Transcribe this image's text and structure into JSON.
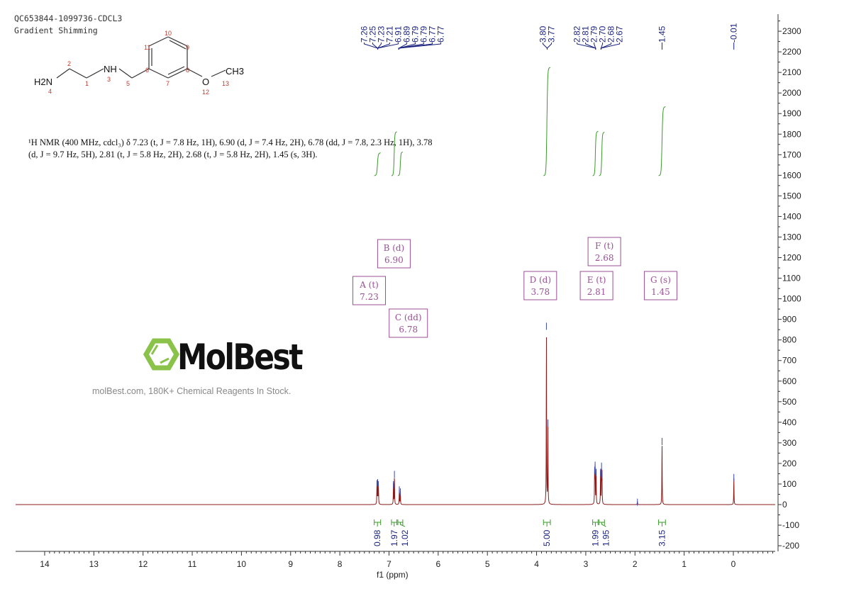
{
  "header": {
    "sample_id": "QC653844-1099736-CDCL3",
    "method": "Gradient Shimming"
  },
  "structure": {
    "atoms": [
      "H2N",
      "NH",
      "O",
      "CH3"
    ],
    "atom_numbers": [
      "1",
      "2",
      "3",
      "4",
      "5",
      "6",
      "7",
      "8",
      "9",
      "10",
      "11",
      "12",
      "13"
    ]
  },
  "nmr_description": "¹H NMR (400 MHz, cdcl₃) δ 7.23 (t, J = 7.8 Hz, 1H), 6.90 (d, J = 7.4 Hz, 2H), 6.78 (dd, J = 7.8, 2.3 Hz, 1H), 3.78 (d, J = 9.7 Hz, 5H), 2.81 (t, J = 5.8 Hz, 2H), 2.68 (t, J = 5.8 Hz, 2H), 1.45 (s, 3H).",
  "watermark": {
    "logo": "MolBest",
    "tagline": "molBest.com, 180K+ Chemical Reagents In Stock."
  },
  "chart_data": {
    "type": "line",
    "xlabel": "f1 (ppm)",
    "ylabel": "",
    "xlim": [
      14.6,
      -0.85
    ],
    "ylim": [
      -200,
      2370
    ],
    "x_ticks": [
      14,
      13,
      12,
      11,
      10,
      9,
      8,
      7,
      6,
      5,
      4,
      3,
      2,
      1,
      0
    ],
    "y_ticks": [
      -200,
      -100,
      0,
      100,
      200,
      300,
      400,
      500,
      600,
      700,
      800,
      900,
      1000,
      1100,
      1200,
      1300,
      1400,
      1500,
      1600,
      1700,
      1800,
      1900,
      2000,
      2100,
      2200,
      2300
    ],
    "colors": {
      "spectrum": "#8b1a1a",
      "integral": "#3a9a2a",
      "peak_label": "#1a237e",
      "multiplet": "#9b4f96"
    },
    "peaks": [
      {
        "ppm": 7.245,
        "intensity": 105
      },
      {
        "ppm": 7.23,
        "intensity": 110
      },
      {
        "ppm": 7.215,
        "intensity": 100
      },
      {
        "ppm": 6.91,
        "intensity": 100
      },
      {
        "ppm": 6.89,
        "intensity": 150
      },
      {
        "ppm": 6.79,
        "intensity": 75
      },
      {
        "ppm": 6.77,
        "intensity": 65
      },
      {
        "ppm": 3.8,
        "intensity": 870
      },
      {
        "ppm": 3.77,
        "intensity": 400
      },
      {
        "ppm": 2.82,
        "intensity": 170
      },
      {
        "ppm": 2.81,
        "intensity": 195
      },
      {
        "ppm": 2.79,
        "intensity": 160
      },
      {
        "ppm": 2.7,
        "intensity": 160
      },
      {
        "ppm": 2.68,
        "intensity": 190
      },
      {
        "ppm": 2.67,
        "intensity": 150
      },
      {
        "ppm": 1.95,
        "intensity": 15
      },
      {
        "ppm": 1.45,
        "intensity": 310
      },
      {
        "ppm": -0.01,
        "intensity": 135
      }
    ],
    "peak_labels": [
      {
        "group": [
          "7.26",
          "7.25",
          "7.23",
          "7.21",
          "6.91",
          "6.89",
          "6.79",
          "6.79",
          "6.77",
          "6.77"
        ],
        "target_ppm": [
          7.23,
          6.8
        ]
      },
      {
        "group": [
          "3.80",
          "3.77"
        ],
        "target_ppm": [
          3.785
        ]
      },
      {
        "group": [
          "2.82",
          "2.81",
          "2.79",
          "2.70",
          "2.68",
          "2.67"
        ],
        "target_ppm": [
          2.8,
          2.69
        ]
      },
      {
        "group": [
          "1.45"
        ],
        "target_ppm": [
          1.45
        ]
      },
      {
        "group": [
          "-0.01"
        ],
        "target_ppm": [
          -0.01
        ]
      }
    ],
    "integrals": [
      {
        "from": 7.3,
        "to": 7.17,
        "value": "0.98"
      },
      {
        "from": 6.95,
        "to": 6.84,
        "value": "1.97"
      },
      {
        "from": 6.82,
        "to": 6.72,
        "value": "1.02"
      },
      {
        "from": 3.86,
        "to": 3.72,
        "value": "5.00"
      },
      {
        "from": 2.86,
        "to": 2.75,
        "value": "1.99"
      },
      {
        "from": 2.73,
        "to": 2.62,
        "value": "1.95"
      },
      {
        "from": 1.52,
        "to": 1.38,
        "value": "3.15"
      }
    ],
    "multiplets": [
      {
        "label": "A (t)",
        "shift": "7.23",
        "ppm": 7.23
      },
      {
        "label": "B (d)",
        "shift": "6.90",
        "ppm": 6.9
      },
      {
        "label": "C (dd)",
        "shift": "6.78",
        "ppm": 6.78
      },
      {
        "label": "D (d)",
        "shift": "3.78",
        "ppm": 3.78
      },
      {
        "label": "E (t)",
        "shift": "2.81",
        "ppm": 2.81
      },
      {
        "label": "F (t)",
        "shift": "2.68",
        "ppm": 2.68
      },
      {
        "label": "G (s)",
        "shift": "1.45",
        "ppm": 1.45
      }
    ]
  }
}
